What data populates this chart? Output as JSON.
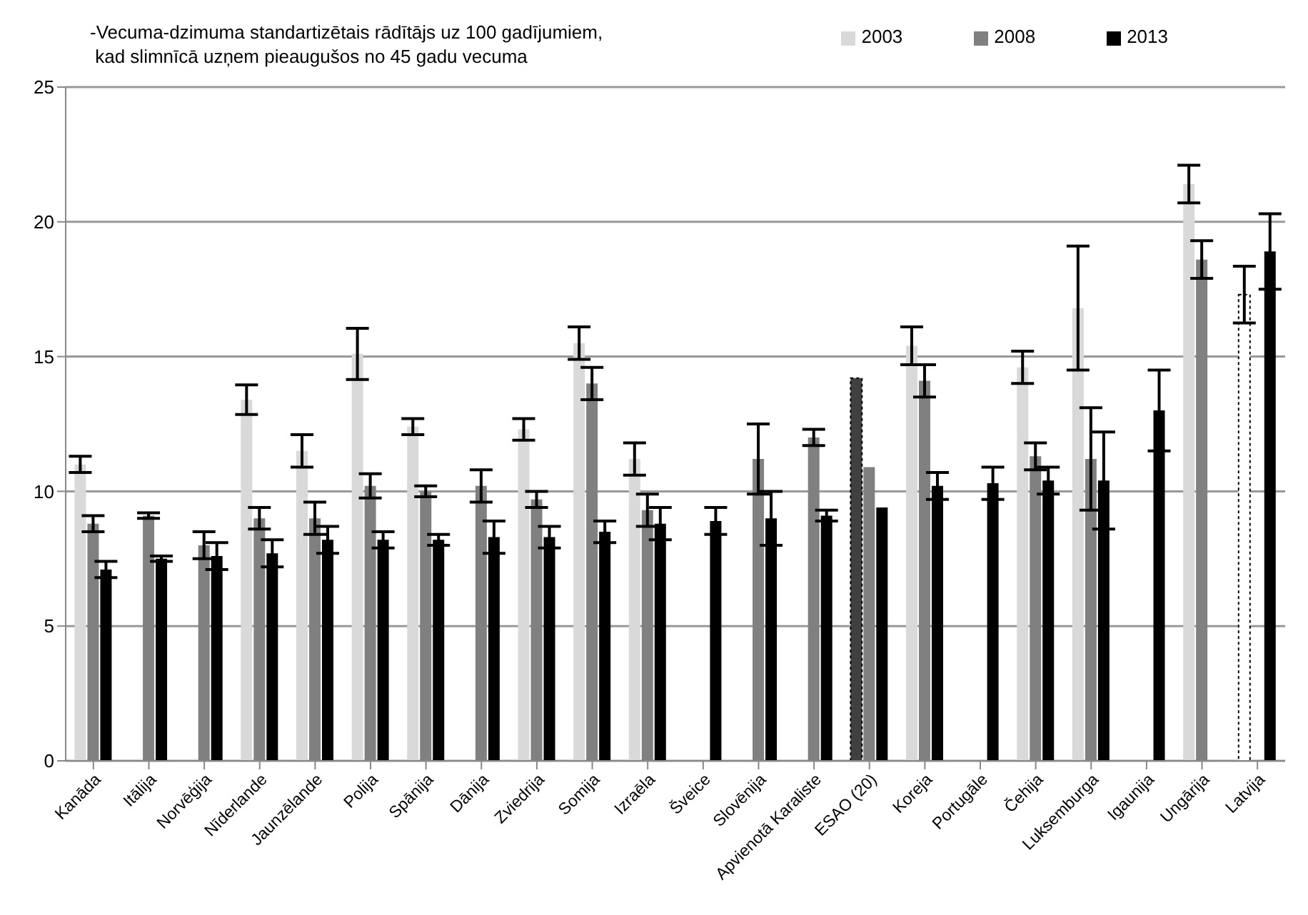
{
  "chart_data": {
    "type": "bar",
    "title": "-Vecuma-dzimuma standartizētais rādītājs uz 100 gadījumiem,\n kad slimnīcā uzņem pieaugušos no 45 gadu vecuma",
    "categories": [
      "Kanāda",
      "Itālija",
      "Norvēģija",
      "Nīderlande",
      "Jaunzēlande",
      "Polija",
      "Spānija",
      "Dānija",
      "Zviedrija",
      "Somija",
      "Izraēla",
      "Šveice",
      "Slovēnija",
      "Apvienotā Karaliste",
      "ESAO (20)",
      "Koreja",
      "Portugāle",
      "Čehija",
      "Luksemburga",
      "Igaunija",
      "Ungārija",
      "Latvija"
    ],
    "series": [
      {
        "name": "2003",
        "color": "#d9d9d9",
        "colors": [
          "#d9d9d9",
          "#d9d9d9",
          "#d9d9d9",
          "#d9d9d9",
          "#d9d9d9",
          "#d9d9d9",
          "#d9d9d9",
          "#d9d9d9",
          "#d9d9d9",
          "#d9d9d9",
          "#d9d9d9",
          "#d9d9d9",
          "#d9d9d9",
          "#d9d9d9",
          "#404040",
          "#d9d9d9",
          "#d9d9d9",
          "#d9d9d9",
          "#d9d9d9",
          "#d9d9d9",
          "#d9d9d9",
          "#ffffff"
        ],
        "values": [
          11.0,
          null,
          null,
          13.4,
          11.5,
          15.1,
          12.4,
          null,
          12.3,
          15.5,
          11.2,
          null,
          null,
          null,
          14.2,
          15.4,
          null,
          14.6,
          16.8,
          null,
          21.4,
          17.3
        ],
        "errors": [
          0.3,
          null,
          null,
          0.55,
          0.6,
          0.95,
          0.3,
          null,
          0.4,
          0.6,
          0.6,
          null,
          null,
          null,
          null,
          0.7,
          null,
          0.6,
          2.3,
          null,
          0.7,
          1.05
        ]
      },
      {
        "name": "2008",
        "color": "#808080",
        "values": [
          8.8,
          9.1,
          8.0,
          9.0,
          9.0,
          10.2,
          10.0,
          10.2,
          9.7,
          14.0,
          9.3,
          null,
          11.2,
          12.0,
          10.9,
          14.1,
          null,
          11.3,
          11.2,
          null,
          18.6,
          null
        ],
        "errors": [
          0.3,
          0.1,
          0.5,
          0.4,
          0.6,
          0.45,
          0.2,
          0.6,
          0.3,
          0.6,
          0.6,
          null,
          1.3,
          0.3,
          null,
          0.6,
          null,
          0.5,
          1.9,
          null,
          0.7,
          null
        ]
      },
      {
        "name": "2013",
        "color": "#000000",
        "values": [
          7.1,
          7.5,
          7.6,
          7.7,
          8.2,
          8.2,
          8.2,
          8.3,
          8.3,
          8.5,
          8.8,
          8.9,
          9.0,
          9.1,
          9.4,
          10.2,
          10.3,
          10.4,
          10.4,
          13.0,
          null,
          18.9
        ],
        "errors": [
          0.3,
          0.1,
          0.5,
          0.5,
          0.5,
          0.3,
          0.2,
          0.6,
          0.4,
          0.4,
          0.6,
          0.5,
          1.0,
          0.2,
          null,
          0.5,
          0.6,
          0.5,
          1.8,
          1.5,
          null,
          1.4
        ]
      }
    ],
    "ylim": [
      0,
      25
    ],
    "yticks": [
      0,
      5,
      10,
      15,
      20,
      25
    ],
    "grid": "y",
    "legend": "top right"
  }
}
